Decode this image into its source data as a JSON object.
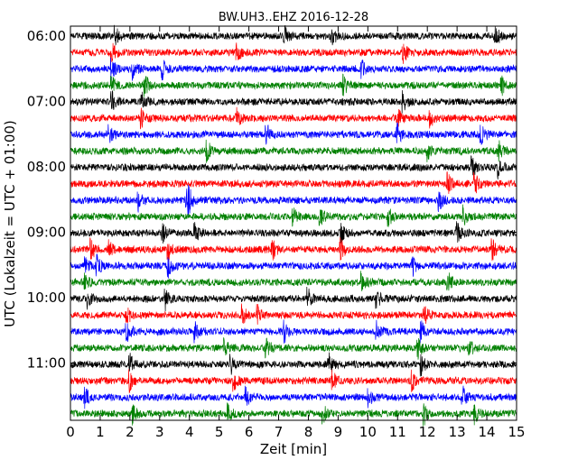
{
  "chart_data": {
    "type": "line",
    "title": "BW.UH3..EHZ 2016-12-28",
    "xlabel": "Zeit  [min]",
    "ylabel": "UTC (Lokalzeit = UTC + 01:00)",
    "xlim": [
      0,
      15
    ],
    "x_ticks": [
      "0",
      "1",
      "2",
      "3",
      "4",
      "5",
      "6",
      "7",
      "8",
      "9",
      "10",
      "11",
      "12",
      "13",
      "14",
      "15"
    ],
    "y_ticks": [
      "06:00",
      "07:00",
      "08:00",
      "09:00",
      "10:00",
      "11:00"
    ],
    "trace_length_min": 15,
    "trace_color_cycle": [
      "#000000",
      "#ff0000",
      "#0000ff",
      "#008000"
    ],
    "grid": false,
    "series": [
      {
        "start": "06:00",
        "events_min": [
          1.5,
          7.2,
          8.8,
          14.3
        ]
      },
      {
        "start": "06:15",
        "events_min": [
          1.4,
          5.6,
          11.2
        ]
      },
      {
        "start": "06:30",
        "events_min": [
          1.4,
          2.1,
          3.1,
          9.8
        ]
      },
      {
        "start": "06:45",
        "events_min": [
          1.4,
          2.5,
          9.2,
          14.5
        ]
      },
      {
        "start": "07:00",
        "events_min": [
          1.4,
          2.4,
          11.2
        ]
      },
      {
        "start": "07:15",
        "events_min": [
          2.4,
          5.6,
          11.0,
          12.1
        ]
      },
      {
        "start": "07:30",
        "events_min": [
          1.3,
          6.6,
          11.0,
          13.8
        ]
      },
      {
        "start": "07:45",
        "events_min": [
          4.6,
          12.0,
          14.4
        ]
      },
      {
        "start": "08:00",
        "events_min": [
          13.5,
          14.4
        ]
      },
      {
        "start": "08:15",
        "events_min": [
          12.7,
          13.6
        ]
      },
      {
        "start": "08:30",
        "events_min": [
          2.3,
          3.9,
          4.0,
          12.4
        ]
      },
      {
        "start": "08:45",
        "events_min": [
          7.5,
          8.4,
          10.7,
          13.2
        ]
      },
      {
        "start": "09:00",
        "events_min": [
          3.1,
          4.2,
          9.1,
          13.0
        ]
      },
      {
        "start": "09:15",
        "events_min": [
          0.7,
          1.3,
          3.3,
          6.8,
          9.1,
          14.2
        ]
      },
      {
        "start": "09:30",
        "events_min": [
          0.5,
          0.9,
          3.3,
          11.5
        ]
      },
      {
        "start": "09:45",
        "events_min": [
          0.5,
          9.8,
          12.7
        ]
      },
      {
        "start": "10:00",
        "events_min": [
          0.6,
          3.2,
          8.0,
          10.3
        ]
      },
      {
        "start": "10:15",
        "events_min": [
          1.9,
          5.8,
          6.3,
          11.9
        ]
      },
      {
        "start": "10:30",
        "events_min": [
          1.9,
          4.2,
          7.2,
          10.3,
          11.8
        ]
      },
      {
        "start": "10:45",
        "events_min": [
          5.2,
          6.6,
          11.7,
          13.4
        ]
      },
      {
        "start": "11:00",
        "events_min": [
          2.0,
          5.4,
          8.7,
          11.8
        ]
      },
      {
        "start": "11:15",
        "events_min": [
          2.0,
          5.5,
          8.8,
          11.5
        ]
      },
      {
        "start": "11:30",
        "events_min": [
          0.5,
          5.9,
          10.0,
          13.2
        ]
      },
      {
        "start": "11:45",
        "events_min": [
          2.1,
          5.3,
          8.5,
          11.9,
          13.6
        ]
      }
    ]
  }
}
